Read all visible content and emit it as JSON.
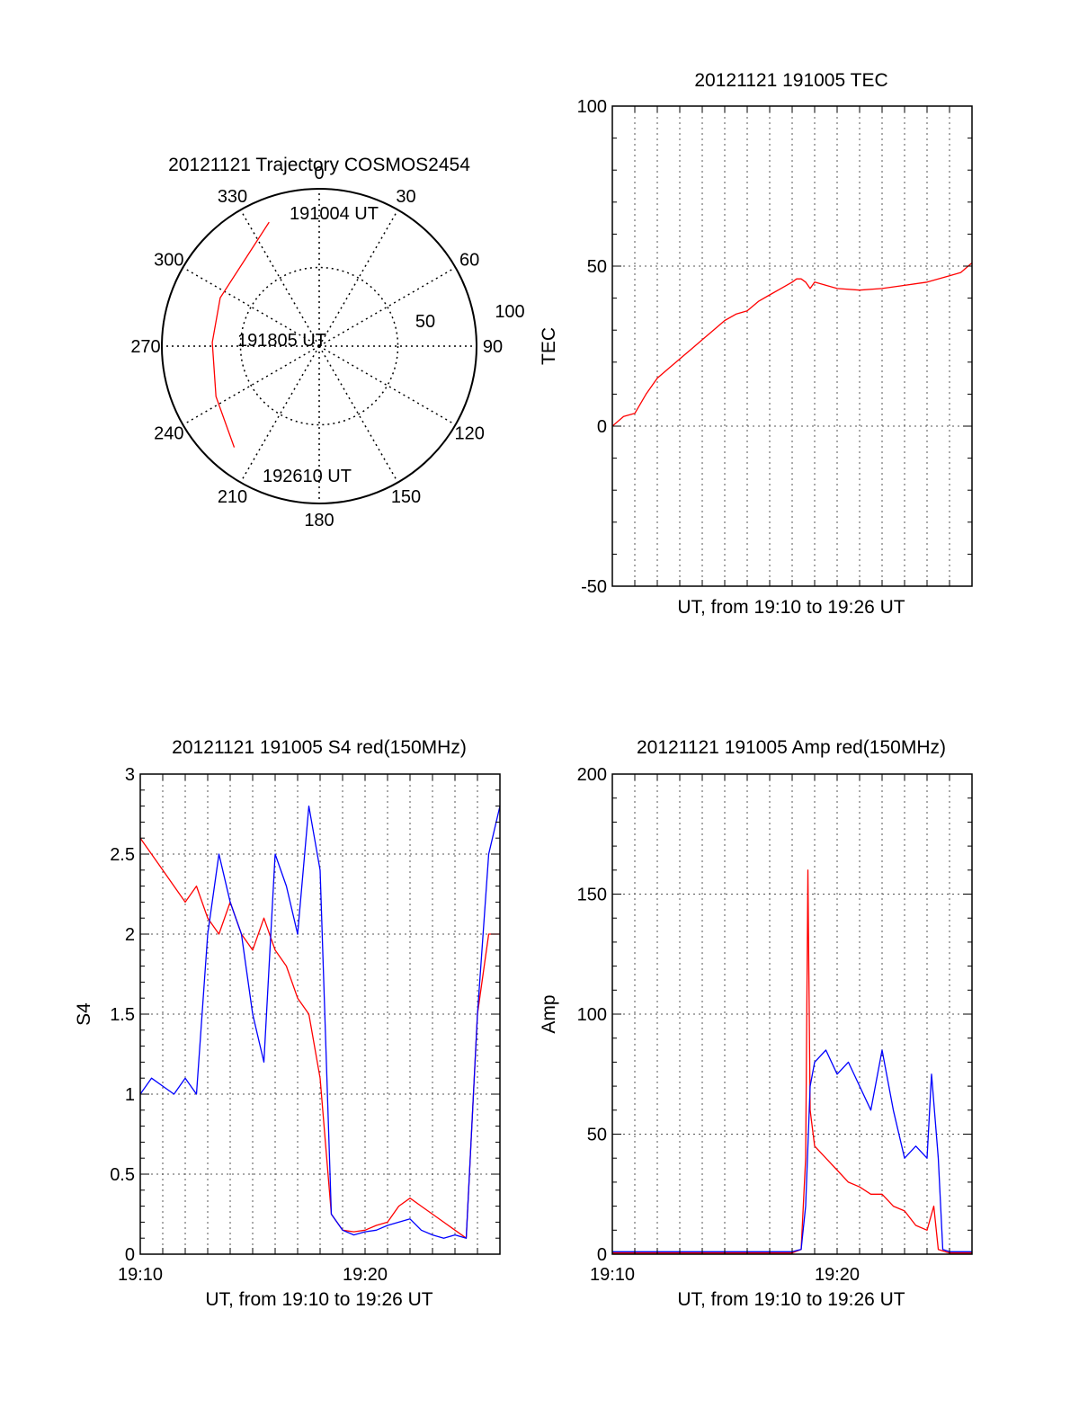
{
  "chart_data": [
    {
      "type": "polar-trajectory",
      "title": "20121121 Trajectory COSMOS2454",
      "angle_ticks": [
        "0",
        "30",
        "60",
        "90",
        "120",
        "150",
        "180",
        "210",
        "240",
        "270",
        "300",
        "330"
      ],
      "radius_ticks": [
        "50",
        "100"
      ],
      "labels": {
        "start": "191004 UT",
        "middle": "191805 UT",
        "end": "192610 UT"
      },
      "series": [
        {
          "color": "#ff0000",
          "points": [
            {
              "az": 338,
              "r": 85
            },
            {
              "az": 318,
              "r": 72
            },
            {
              "az": 296,
              "r": 70
            },
            {
              "az": 272,
              "r": 68
            },
            {
              "az": 244,
              "r": 73
            },
            {
              "az": 220,
              "r": 84
            }
          ]
        }
      ]
    },
    {
      "type": "line",
      "title": "20121121 191005 TEC",
      "xlabel": "UT, from 19:10 to 19:26 UT",
      "ylabel": "TEC",
      "xlim": [
        0,
        16
      ],
      "ylim": [
        -50,
        100
      ],
      "yticks": [
        "-50",
        "0",
        "50",
        "100"
      ],
      "grid": true,
      "series": [
        {
          "color": "#ff0000",
          "x": [
            0,
            0.5,
            1.0,
            1.5,
            2.0,
            2.5,
            3.0,
            3.5,
            4.0,
            4.5,
            5.0,
            5.5,
            6.0,
            6.5,
            7.0,
            7.5,
            8.0,
            8.2,
            8.4,
            8.6,
            8.8,
            9.0,
            10.0,
            11.0,
            12.0,
            13.0,
            14.0,
            15.0,
            15.5,
            16.0
          ],
          "y": [
            0,
            3,
            4,
            10,
            15,
            18,
            21,
            24,
            27,
            30,
            33,
            35,
            36,
            39,
            41,
            43,
            45,
            46,
            46,
            45,
            43,
            45,
            43,
            42.5,
            43,
            44,
            45,
            47,
            48,
            51
          ]
        }
      ]
    },
    {
      "type": "line",
      "title": "20121121 191005 S4 red(150MHz)",
      "xlabel": "UT, from 19:10 to 19:26 UT",
      "ylabel": "S4",
      "xlim": [
        0,
        16
      ],
      "ylim": [
        0,
        3
      ],
      "xticks": [
        "19:10",
        "19:20"
      ],
      "yticks": [
        "0",
        "0.5",
        "1",
        "1.5",
        "2",
        "2.5",
        "3"
      ],
      "grid": true,
      "series": [
        {
          "color": "#ff0000",
          "x": [
            0,
            0.5,
            1,
            1.5,
            2,
            2.5,
            3,
            3.5,
            4,
            4.5,
            5,
            5.5,
            6,
            6.5,
            7,
            7.5,
            8,
            8.5,
            9,
            9.5,
            10,
            10.5,
            11,
            11.5,
            12,
            12.5,
            13,
            13.5,
            14,
            14.5,
            15,
            15.5,
            16
          ],
          "y": [
            2.6,
            2.5,
            2.4,
            2.3,
            2.2,
            2.3,
            2.1,
            2.0,
            2.2,
            2.0,
            1.9,
            2.1,
            1.9,
            1.8,
            1.6,
            1.5,
            1.1,
            0.25,
            0.15,
            0.14,
            0.15,
            0.18,
            0.2,
            0.3,
            0.35,
            0.3,
            0.25,
            0.2,
            0.15,
            0.1,
            1.5,
            2.0,
            2.0
          ]
        },
        {
          "color": "#0000ff",
          "x": [
            0,
            0.5,
            1,
            1.5,
            2,
            2.5,
            3,
            3.5,
            4,
            4.5,
            5,
            5.5,
            6,
            6.5,
            7,
            7.5,
            8,
            8.5,
            9,
            9.5,
            10,
            10.5,
            11,
            11.5,
            12,
            12.5,
            13,
            13.5,
            14,
            14.5,
            15,
            15.5,
            16
          ],
          "y": [
            1.0,
            1.1,
            1.05,
            1.0,
            1.1,
            1.0,
            2.0,
            2.5,
            2.2,
            2.0,
            1.5,
            1.2,
            2.5,
            2.3,
            2.0,
            2.8,
            2.4,
            0.25,
            0.15,
            0.12,
            0.14,
            0.15,
            0.18,
            0.2,
            0.22,
            0.15,
            0.12,
            0.1,
            0.12,
            0.1,
            1.5,
            2.5,
            2.8
          ]
        }
      ]
    },
    {
      "type": "line",
      "title": "20121121 191005 Amp red(150MHz)",
      "xlabel": "UT, from 19:10 to 19:26 UT",
      "ylabel": "Amp",
      "xlim": [
        0,
        16
      ],
      "ylim": [
        0,
        200
      ],
      "xticks": [
        "19:10",
        "19:20"
      ],
      "yticks": [
        "0",
        "50",
        "100",
        "150",
        "200"
      ],
      "grid": true,
      "series": [
        {
          "color": "#ff0000",
          "x": [
            0,
            2,
            4,
            6,
            8,
            8.4,
            8.6,
            8.7,
            8.8,
            9.0,
            9.5,
            10.0,
            10.5,
            11.0,
            11.5,
            12.0,
            12.5,
            13.0,
            13.5,
            14.0,
            14.3,
            14.5,
            15,
            16
          ],
          "y": [
            0.5,
            0.5,
            0.5,
            0.5,
            0.5,
            2,
            40,
            160,
            60,
            45,
            40,
            35,
            30,
            28,
            25,
            25,
            20,
            18,
            12,
            10,
            20,
            2,
            0.5,
            0.5
          ]
        },
        {
          "color": "#0000ff",
          "x": [
            0,
            2,
            4,
            6,
            8,
            8.4,
            8.6,
            8.8,
            9.0,
            9.5,
            10.0,
            10.5,
            11.0,
            11.5,
            12.0,
            12.5,
            13.0,
            13.5,
            14.0,
            14.2,
            14.5,
            14.7,
            15,
            16
          ],
          "y": [
            1,
            1,
            1,
            1,
            1,
            2,
            20,
            70,
            80,
            85,
            75,
            80,
            70,
            60,
            85,
            60,
            40,
            45,
            40,
            75,
            40,
            2,
            1,
            1
          ]
        }
      ]
    }
  ]
}
